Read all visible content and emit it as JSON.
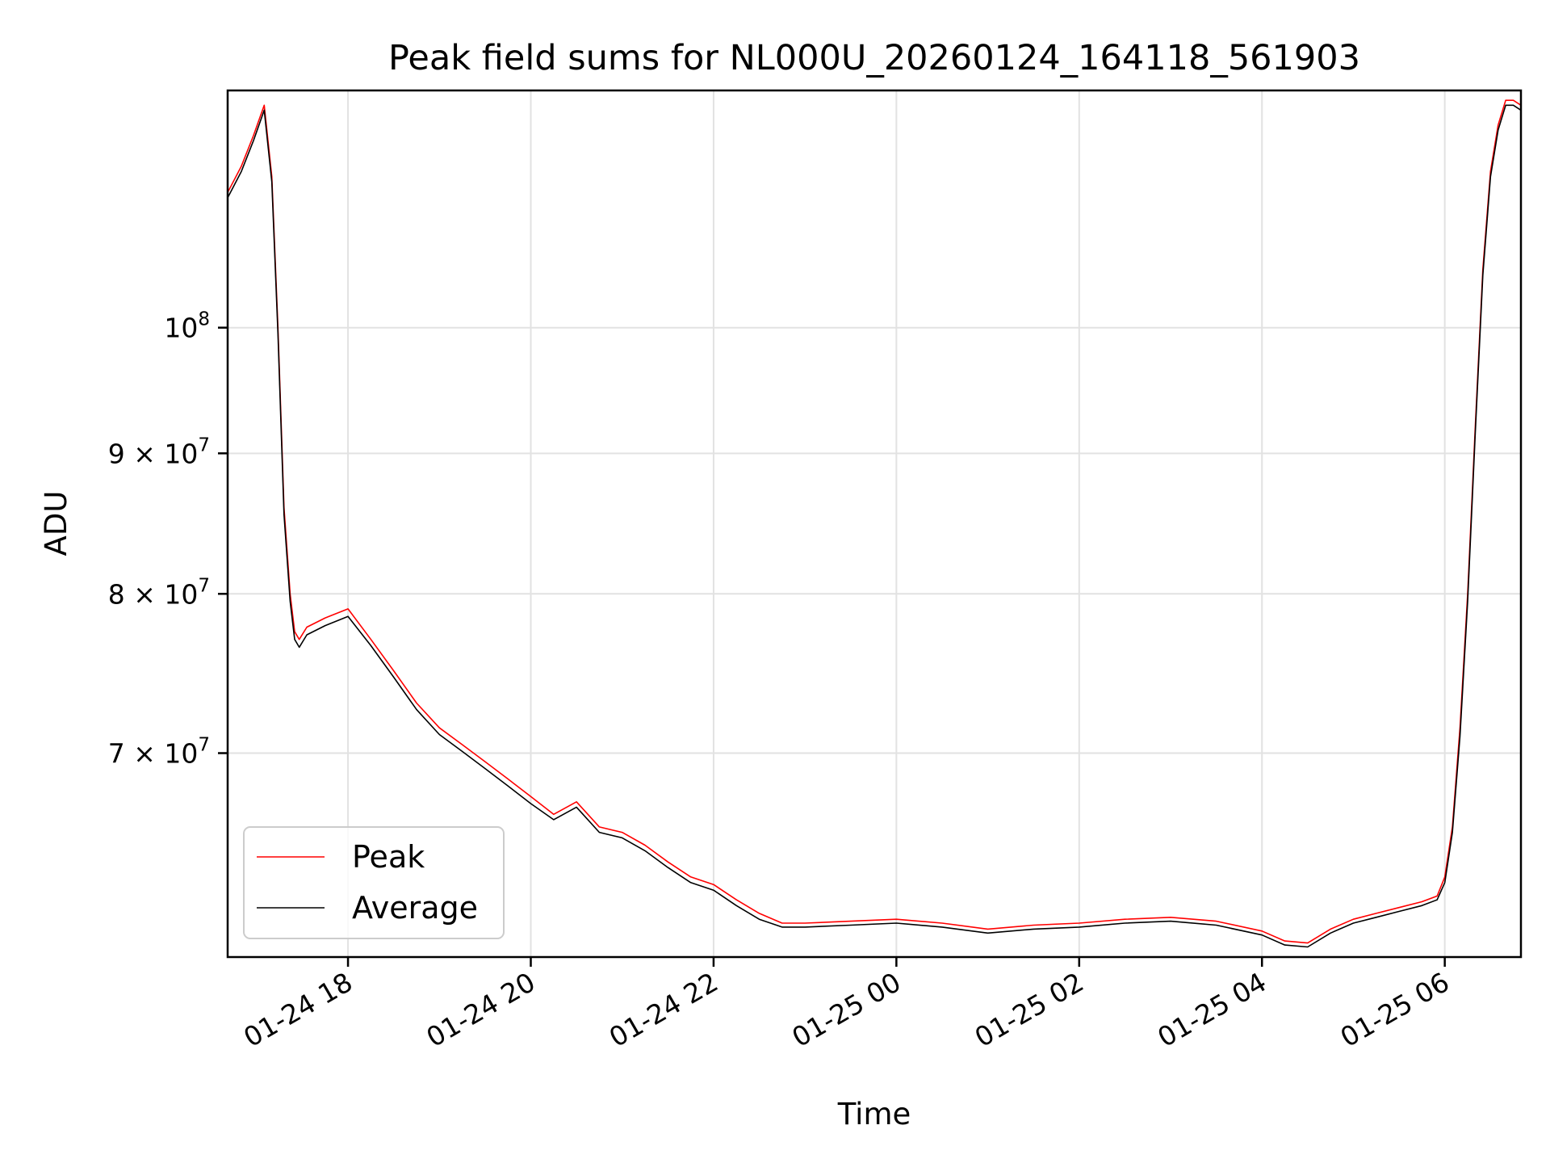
{
  "chart_data": {
    "type": "line",
    "title": "Peak field sums for NL000U_20260124_164118_561903",
    "xlabel": "Time",
    "ylabel": "ADU",
    "y_scale": "log",
    "grid": true,
    "legend_position": "lower-left",
    "xlim": [
      "2026-01-24 16:41",
      "2026-01-25 06:50"
    ],
    "ylim": [
      59000000,
      122000000
    ],
    "x_ticks": [
      {
        "t": "2026-01-24 18:00",
        "label": "01-24 18"
      },
      {
        "t": "2026-01-24 20:00",
        "label": "01-24 20"
      },
      {
        "t": "2026-01-24 22:00",
        "label": "01-24 22"
      },
      {
        "t": "2026-01-25 00:00",
        "label": "01-25 00"
      },
      {
        "t": "2026-01-25 02:00",
        "label": "01-25 02"
      },
      {
        "t": "2026-01-25 04:00",
        "label": "01-25 04"
      },
      {
        "t": "2026-01-25 06:00",
        "label": "01-25 06"
      }
    ],
    "y_ticks": [
      {
        "value": 100000000,
        "base": "10",
        "exp": "8"
      },
      {
        "value": 90000000,
        "base": "9 × 10",
        "exp": "7"
      },
      {
        "value": 80000000,
        "base": "8 × 10",
        "exp": "7"
      },
      {
        "value": 70000000,
        "base": "7 × 10",
        "exp": "7"
      }
    ],
    "series": [
      {
        "name": "Peak",
        "color": "#ff0000",
        "x": [
          "2026-01-24 16:41",
          "2026-01-24 16:50",
          "2026-01-24 16:58",
          "2026-01-24 17:05",
          "2026-01-24 17:10",
          "2026-01-24 17:14",
          "2026-01-24 17:18",
          "2026-01-24 17:22",
          "2026-01-24 17:25",
          "2026-01-24 17:28",
          "2026-01-24 17:33",
          "2026-01-24 17:45",
          "2026-01-24 18:00",
          "2026-01-24 18:15",
          "2026-01-24 18:30",
          "2026-01-24 18:45",
          "2026-01-24 19:00",
          "2026-01-24 19:15",
          "2026-01-24 19:30",
          "2026-01-24 19:45",
          "2026-01-24 20:00",
          "2026-01-24 20:15",
          "2026-01-24 20:30",
          "2026-01-24 20:45",
          "2026-01-24 21:00",
          "2026-01-24 21:15",
          "2026-01-24 21:30",
          "2026-01-24 21:45",
          "2026-01-24 22:00",
          "2026-01-24 22:15",
          "2026-01-24 22:30",
          "2026-01-24 22:45",
          "2026-01-24 23:00",
          "2026-01-24 23:30",
          "2026-01-25 00:00",
          "2026-01-25 00:30",
          "2026-01-25 01:00",
          "2026-01-25 01:30",
          "2026-01-25 02:00",
          "2026-01-25 02:30",
          "2026-01-25 03:00",
          "2026-01-25 03:30",
          "2026-01-25 04:00",
          "2026-01-25 04:15",
          "2026-01-25 04:30",
          "2026-01-25 04:45",
          "2026-01-25 05:00",
          "2026-01-25 05:15",
          "2026-01-25 05:30",
          "2026-01-25 05:45",
          "2026-01-25 05:55",
          "2026-01-25 06:00",
          "2026-01-25 06:05",
          "2026-01-25 06:10",
          "2026-01-25 06:15",
          "2026-01-25 06:20",
          "2026-01-25 06:25",
          "2026-01-25 06:30",
          "2026-01-25 06:35",
          "2026-01-25 06:40",
          "2026-01-25 06:45",
          "2026-01-25 06:50"
        ],
        "y": [
          112000000,
          114500000,
          117500000,
          120500000,
          113500000,
          100000000,
          86000000,
          80000000,
          77500000,
          77000000,
          77800000,
          78400000,
          79000000,
          77000000,
          75000000,
          73000000,
          71500000,
          70500000,
          69500000,
          68500000,
          67500000,
          66500000,
          67200000,
          65800000,
          65500000,
          64800000,
          63900000,
          63100000,
          62700000,
          61900000,
          61200000,
          60700000,
          60700000,
          60800000,
          60900000,
          60700000,
          60400000,
          60600000,
          60700000,
          60900000,
          61000000,
          60800000,
          60300000,
          59800000,
          59700000,
          60400000,
          60900000,
          61200000,
          61500000,
          61800000,
          62100000,
          63100000,
          65800000,
          71500000,
          80000000,
          92000000,
          105000000,
          114000000,
          118500000,
          121000000,
          121000000,
          120500000
        ]
      },
      {
        "name": "Average",
        "color": "#000000",
        "x": [
          "2026-01-24 16:41",
          "2026-01-24 16:50",
          "2026-01-24 16:58",
          "2026-01-24 17:05",
          "2026-01-24 17:10",
          "2026-01-24 17:14",
          "2026-01-24 17:18",
          "2026-01-24 17:22",
          "2026-01-24 17:25",
          "2026-01-24 17:28",
          "2026-01-24 17:33",
          "2026-01-24 17:45",
          "2026-01-24 18:00",
          "2026-01-24 18:15",
          "2026-01-24 18:30",
          "2026-01-24 18:45",
          "2026-01-24 19:00",
          "2026-01-24 19:15",
          "2026-01-24 19:30",
          "2026-01-24 19:45",
          "2026-01-24 20:00",
          "2026-01-24 20:15",
          "2026-01-24 20:30",
          "2026-01-24 20:45",
          "2026-01-24 21:00",
          "2026-01-24 21:15",
          "2026-01-24 21:30",
          "2026-01-24 21:45",
          "2026-01-24 22:00",
          "2026-01-24 22:15",
          "2026-01-24 22:30",
          "2026-01-24 22:45",
          "2026-01-24 23:00",
          "2026-01-24 23:30",
          "2026-01-25 00:00",
          "2026-01-25 00:30",
          "2026-01-25 01:00",
          "2026-01-25 01:30",
          "2026-01-25 02:00",
          "2026-01-25 02:30",
          "2026-01-25 03:00",
          "2026-01-25 03:30",
          "2026-01-25 04:00",
          "2026-01-25 04:15",
          "2026-01-25 04:30",
          "2026-01-25 04:45",
          "2026-01-25 05:00",
          "2026-01-25 05:15",
          "2026-01-25 05:30",
          "2026-01-25 05:45",
          "2026-01-25 05:55",
          "2026-01-25 06:00",
          "2026-01-25 06:05",
          "2026-01-25 06:10",
          "2026-01-25 06:15",
          "2026-01-25 06:20",
          "2026-01-25 06:25",
          "2026-01-25 06:30",
          "2026-01-25 06:35",
          "2026-01-25 06:40",
          "2026-01-25 06:45",
          "2026-01-25 06:50"
        ],
        "y": [
          111500000,
          114000000,
          117000000,
          120000000,
          113000000,
          99500000,
          85500000,
          79500000,
          77000000,
          76500000,
          77300000,
          77900000,
          78500000,
          76600000,
          74600000,
          72600000,
          71100000,
          70100000,
          69100000,
          68100000,
          67100000,
          66200000,
          66900000,
          65500000,
          65200000,
          64500000,
          63600000,
          62800000,
          62400000,
          61600000,
          60900000,
          60500000,
          60500000,
          60600000,
          60700000,
          60500000,
          60200000,
          60400000,
          60500000,
          60700000,
          60800000,
          60600000,
          60100000,
          59600000,
          59500000,
          60200000,
          60700000,
          61000000,
          61300000,
          61600000,
          61900000,
          62800000,
          65500000,
          71000000,
          79500000,
          91500000,
          104500000,
          113500000,
          118000000,
          120500000,
          120500000,
          120000000
        ]
      }
    ]
  }
}
